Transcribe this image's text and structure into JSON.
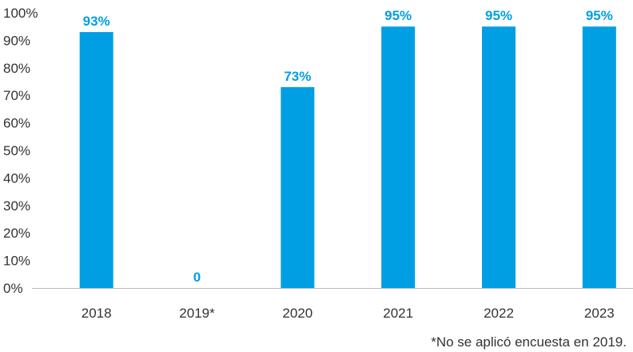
{
  "chart_data": {
    "type": "bar",
    "categories": [
      "2018",
      "2019*",
      "2020",
      "2021",
      "2022",
      "2023"
    ],
    "values": [
      93,
      0,
      73,
      95,
      95,
      95
    ],
    "data_labels": [
      "93%",
      "0",
      "73%",
      "95%",
      "95%",
      "95%"
    ],
    "ylim": [
      0,
      100
    ],
    "yticks": [
      "0%",
      "10%",
      "20%",
      "30%",
      "40%",
      "50%",
      "60%",
      "70%",
      "80%",
      "90%",
      "100%"
    ],
    "grid": false,
    "bar_color": "#009fe3",
    "label_color": "#009fe3",
    "axis_color": "#bbbbbb",
    "text_color": "#333333"
  },
  "footnote": "*No se aplicó encuesta en 2019."
}
